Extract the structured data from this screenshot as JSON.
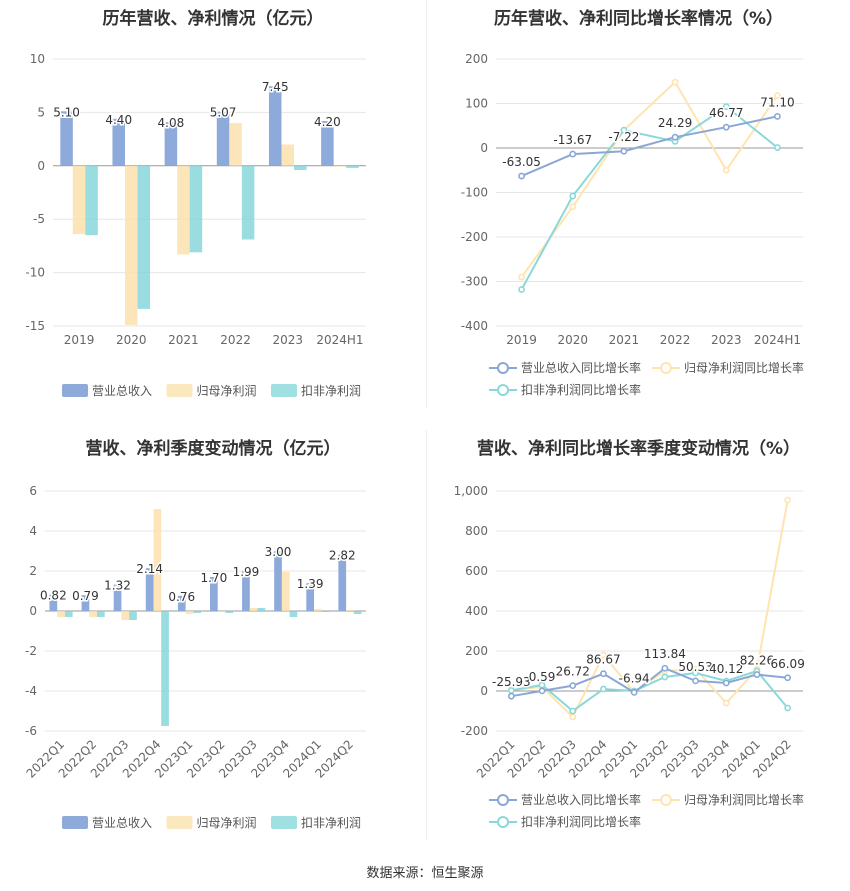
{
  "source": "数据来源：恒生聚源",
  "colors": {
    "rev": "#8eaadb",
    "net": "#fbe0a8",
    "deduct": "#80d5d8",
    "netLine": "#ffe4b0",
    "deductLine": "#8ad8da",
    "revLine": "#8aa7d6"
  },
  "chart_data": [
    {
      "id": "annual-bars",
      "type": "bar",
      "title": "历年营收、净利情况（亿元）",
      "categories": [
        "2019",
        "2020",
        "2021",
        "2022",
        "2023",
        "2024H1"
      ],
      "ylim": [
        -15,
        10
      ],
      "yticks": [
        "10",
        "5",
        "0",
        "-5",
        "-10",
        "-15"
      ],
      "series": [
        {
          "name": "营业总收入",
          "values": [
            5.1,
            4.4,
            4.08,
            5.07,
            7.45,
            4.2
          ],
          "labels": [
            "5.10",
            "4.40",
            "4.08",
            "5.07",
            "7.45",
            "4.20"
          ]
        },
        {
          "name": "归母净利润",
          "values": [
            -6.4,
            -14.9,
            -8.3,
            4.0,
            2.0,
            0.0
          ]
        },
        {
          "name": "扣非净利润",
          "values": [
            -6.5,
            -13.4,
            -8.1,
            -6.9,
            -0.4,
            -0.2
          ]
        }
      ]
    },
    {
      "id": "annual-growth",
      "type": "line",
      "title": "历年营收、净利同比增长率情况（%）",
      "categories": [
        "2019",
        "2020",
        "2021",
        "2022",
        "2023",
        "2024H1"
      ],
      "ylim": [
        -400,
        200
      ],
      "yticks": [
        "200",
        "100",
        "0",
        "-100",
        "-200",
        "-300",
        "-400"
      ],
      "series": [
        {
          "name": "营业总收入同比增长率",
          "values": [
            -63.05,
            -13.67,
            -7.22,
            24.29,
            46.77,
            71.1
          ],
          "labels": [
            "-63.05",
            "-13.67",
            "-7.22",
            "24.29",
            "46.77",
            "71.10"
          ]
        },
        {
          "name": "归母净利润同比增长率",
          "values": [
            -290,
            -132,
            40,
            148,
            -50,
            118
          ]
        },
        {
          "name": "扣非净利润同比增长率",
          "values": [
            -318,
            -108,
            40,
            15,
            93,
            1
          ]
        }
      ]
    },
    {
      "id": "quarterly-bars",
      "type": "bar",
      "title": "营收、净利季度变动情况（亿元）",
      "categories": [
        "2022Q1",
        "2022Q2",
        "2022Q3",
        "2022Q4",
        "2023Q1",
        "2023Q2",
        "2023Q3",
        "2023Q4",
        "2024Q1",
        "2024Q2"
      ],
      "ylim": [
        -6,
        6
      ],
      "yticks": [
        "6",
        "4",
        "2",
        "0",
        "-2",
        "-4",
        "-6"
      ],
      "series": [
        {
          "name": "营业总收入",
          "values": [
            0.82,
            0.79,
            1.32,
            2.14,
            0.76,
            1.7,
            1.99,
            3.0,
            1.39,
            2.82
          ],
          "labels": [
            "0.82",
            "0.79",
            "1.32",
            "2.14",
            "0.76",
            "1.70",
            "1.99",
            "3.00",
            "1.39",
            "2.82"
          ]
        },
        {
          "name": "归母净利润",
          "values": [
            -0.3,
            -0.3,
            -0.45,
            5.1,
            -0.15,
            -0.05,
            0.15,
            1.95,
            0.1,
            0.05
          ]
        },
        {
          "name": "扣非净利润",
          "values": [
            -0.3,
            -0.3,
            -0.45,
            -5.75,
            -0.1,
            -0.1,
            0.15,
            -0.3,
            -0.05,
            -0.15
          ]
        }
      ]
    },
    {
      "id": "quarterly-growth",
      "type": "line",
      "title": "营收、净利同比增长率季度变动情况（%）",
      "categories": [
        "2022Q1",
        "2022Q2",
        "2022Q3",
        "2022Q4",
        "2023Q1",
        "2023Q2",
        "2023Q3",
        "2023Q4",
        "2024Q1",
        "2024Q2"
      ],
      "ylim": [
        -200,
        1000
      ],
      "yticks": [
        "1,000",
        "800",
        "600",
        "400",
        "200",
        "0",
        "-200"
      ],
      "series": [
        {
          "name": "营业总收入同比增长率",
          "values": [
            -25.93,
            0.59,
            26.72,
            86.67,
            -6.94,
            113.84,
            50.53,
            40.12,
            82.26,
            66.09
          ],
          "labels": [
            "-25.93",
            "0.59",
            "26.72",
            "86.67",
            "-6.94",
            "113.84",
            "50.53",
            "40.12",
            "82.26",
            "66.09"
          ]
        },
        {
          "name": "归母净利润同比增长率",
          "values": [
            5,
            20,
            -130,
            180,
            -5,
            100,
            110,
            -60,
            110,
            955
          ]
        },
        {
          "name": "扣非净利润同比增长率",
          "values": [
            3,
            30,
            -100,
            10,
            0,
            70,
            90,
            50,
            100,
            -85
          ]
        }
      ]
    }
  ]
}
